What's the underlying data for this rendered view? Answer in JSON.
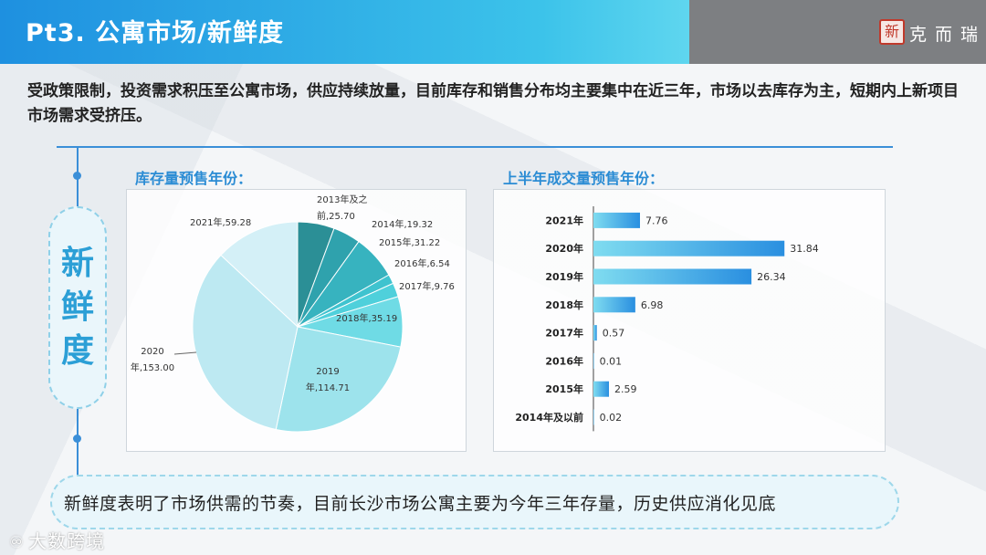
{
  "header": {
    "title": "Pt3. 公寓市场/新鲜度",
    "logo_seal": "新",
    "logo_text": "克而瑞"
  },
  "intro": "受政策限制，投资需求积压至公寓市场，供应持续放量，目前库存和销售分布均主要集中在近三年，市场以去库存为主，短期内上新项目市场需求受挤压。",
  "side_label": [
    "新",
    "鲜",
    "度"
  ],
  "left_panel": {
    "title": "库存量预售年份："
  },
  "right_panel": {
    "title": "上半年成交量预售年份："
  },
  "bottom_text": "新鲜度表明了市场供需的节奏，目前长沙市场公寓主要为今年三年存量，历史供应消化见底",
  "watermark": {
    "icon": "♾",
    "text": "大数跨境"
  },
  "colors": {
    "accent": "#2c9fd6",
    "header_gray": "#7d7f82",
    "line": "#3b8fd8"
  },
  "chart_data": [
    {
      "type": "pie",
      "title": "库存量预售年份：",
      "slices": [
        {
          "label": [
            "2013年及之",
            "前,25.70"
          ],
          "value": 25.7,
          "color": "#2b8f96"
        },
        {
          "label": [
            "2014年,19.32"
          ],
          "value": 19.32,
          "color": "#2fa2ad"
        },
        {
          "label": [
            "2015年,31.22"
          ],
          "value": 31.22,
          "color": "#37b3bf"
        },
        {
          "label": [
            "2016年,6.54"
          ],
          "value": 6.54,
          "color": "#3fc3cf"
        },
        {
          "label": [
            "2017年,9.76"
          ],
          "value": 9.76,
          "color": "#4fd0db"
        },
        {
          "label": [
            "2018年,35.19"
          ],
          "value": 35.19,
          "color": "#6fdbe5"
        },
        {
          "label": [
            "2019",
            "年,114.71"
          ],
          "value": 114.71,
          "color": "#9de3ec"
        },
        {
          "label": [
            "2020",
            "年,153.00"
          ],
          "value": 153.0,
          "color": "#bde9f2"
        },
        {
          "label": [
            "2021年,59.28"
          ],
          "value": 59.28,
          "color": "#d4f0f7"
        }
      ]
    },
    {
      "type": "bar",
      "orientation": "horizontal",
      "title": "上半年成交量预售年份：",
      "categories": [
        "2021年",
        "2020年",
        "2019年",
        "2018年",
        "2017年",
        "2016年",
        "2015年",
        "2014年及以前"
      ],
      "values": [
        7.76,
        31.84,
        26.34,
        6.98,
        0.57,
        0.01,
        2.59,
        0.02
      ],
      "value_labels": [
        "7.76",
        "31.84",
        "26.34",
        "6.98",
        "0.57",
        "0.01",
        "2.59",
        "0.02"
      ],
      "xlim": [
        0,
        35
      ]
    }
  ]
}
